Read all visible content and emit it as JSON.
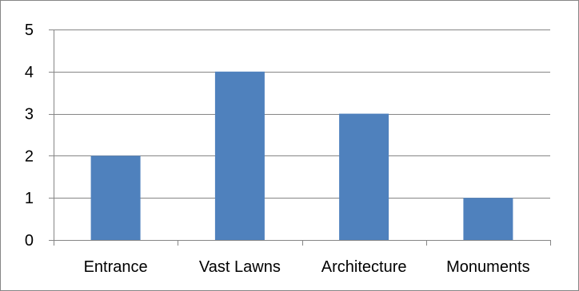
{
  "chart_data": {
    "type": "bar",
    "categories": [
      "Entrance",
      "Vast Lawns",
      "Architecture",
      "Monuments"
    ],
    "values": [
      2,
      4,
      3,
      1
    ],
    "title": "",
    "xlabel": "",
    "ylabel": "",
    "ylim": [
      0,
      5
    ],
    "yticks": [
      "0",
      "1",
      "2",
      "3",
      "4",
      "5"
    ],
    "grid": true,
    "legend": "none",
    "bar_color": "#4F81BD",
    "grid_color": "#868686"
  }
}
